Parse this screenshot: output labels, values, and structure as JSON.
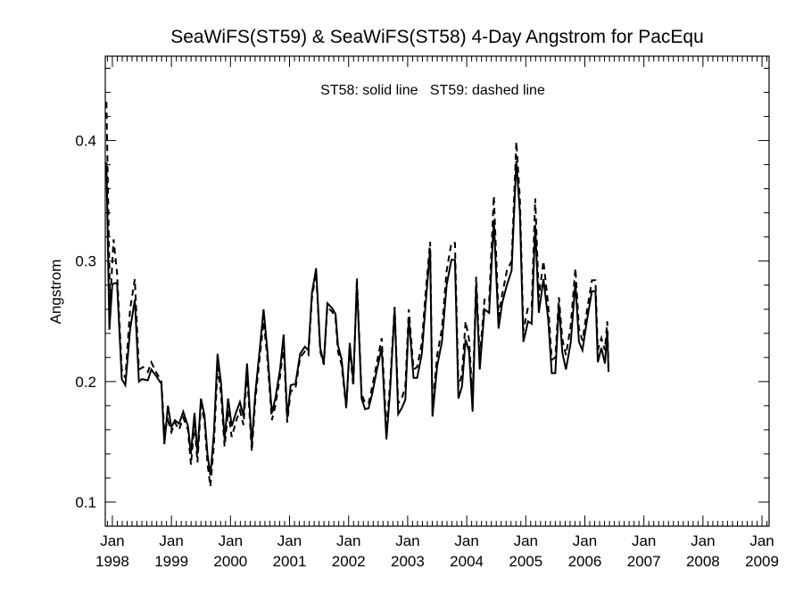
{
  "chart_data": {
    "type": "line",
    "title": "SeaWiFS(ST59) & SeaWiFS(ST58) 4-Day Angstrom for PacEqu",
    "annotation": "ST58: solid line   ST59: dashed line",
    "ylabel": "Angstrom",
    "xlim": [
      1997.88,
      2009.12
    ],
    "ylim": [
      0.08,
      0.47
    ],
    "xticks": [
      {
        "value": 1998,
        "month": "Jan",
        "year": "1998"
      },
      {
        "value": 1999,
        "month": "Jan",
        "year": "1999"
      },
      {
        "value": 2000,
        "month": "Jan",
        "year": "2000"
      },
      {
        "value": 2001,
        "month": "Jan",
        "year": "2001"
      },
      {
        "value": 2002,
        "month": "Jan",
        "year": "2002"
      },
      {
        "value": 2003,
        "month": "Jan",
        "year": "2003"
      },
      {
        "value": 2004,
        "month": "Jan",
        "year": "2004"
      },
      {
        "value": 2005,
        "month": "Jan",
        "year": "2005"
      },
      {
        "value": 2006,
        "month": "Jan",
        "year": "2006"
      },
      {
        "value": 2007,
        "month": "Jan",
        "year": "2007"
      },
      {
        "value": 2008,
        "month": "Jan",
        "year": "2008"
      },
      {
        "value": 2009,
        "month": "Jan",
        "year": "2009"
      }
    ],
    "yticks": [
      {
        "value": 0.1,
        "label": "0.1"
      },
      {
        "value": 0.2,
        "label": "0.2"
      },
      {
        "value": 0.3,
        "label": "0.3"
      },
      {
        "value": 0.4,
        "label": "0.4"
      }
    ],
    "series": [
      {
        "name": "ST58",
        "style": "solid",
        "points": [
          [
            1997.9,
            0.382
          ],
          [
            1997.95,
            0.243
          ],
          [
            1998.0,
            0.281
          ],
          [
            1998.08,
            0.282
          ],
          [
            1998.16,
            0.202
          ],
          [
            1998.22,
            0.197
          ],
          [
            1998.3,
            0.243
          ],
          [
            1998.38,
            0.268
          ],
          [
            1998.45,
            0.2
          ],
          [
            1998.5,
            0.202
          ],
          [
            1998.6,
            0.201
          ],
          [
            1998.66,
            0.21
          ],
          [
            1998.75,
            0.204
          ],
          [
            1998.83,
            0.198
          ],
          [
            1998.88,
            0.148
          ],
          [
            1998.94,
            0.18
          ],
          [
            1999.0,
            0.162
          ],
          [
            1999.06,
            0.168
          ],
          [
            1999.13,
            0.165
          ],
          [
            1999.2,
            0.175
          ],
          [
            1999.28,
            0.163
          ],
          [
            1999.33,
            0.14
          ],
          [
            1999.39,
            0.174
          ],
          [
            1999.44,
            0.14
          ],
          [
            1999.5,
            0.186
          ],
          [
            1999.56,
            0.172
          ],
          [
            1999.61,
            0.14
          ],
          [
            1999.66,
            0.122
          ],
          [
            1999.72,
            0.158
          ],
          [
            1999.78,
            0.223
          ],
          [
            1999.84,
            0.199
          ],
          [
            1999.9,
            0.152
          ],
          [
            1999.96,
            0.186
          ],
          [
            2000.02,
            0.163
          ],
          [
            2000.1,
            0.175
          ],
          [
            2000.16,
            0.183
          ],
          [
            2000.22,
            0.171
          ],
          [
            2000.28,
            0.215
          ],
          [
            2000.36,
            0.148
          ],
          [
            2000.42,
            0.19
          ],
          [
            2000.5,
            0.229
          ],
          [
            2000.56,
            0.26
          ],
          [
            2000.62,
            0.228
          ],
          [
            2000.7,
            0.174
          ],
          [
            2000.76,
            0.186
          ],
          [
            2000.84,
            0.21
          ],
          [
            2000.9,
            0.239
          ],
          [
            2000.96,
            0.17
          ],
          [
            2001.02,
            0.197
          ],
          [
            2001.1,
            0.198
          ],
          [
            2001.18,
            0.223
          ],
          [
            2001.26,
            0.229
          ],
          [
            2001.32,
            0.226
          ],
          [
            2001.38,
            0.274
          ],
          [
            2001.45,
            0.294
          ],
          [
            2001.52,
            0.228
          ],
          [
            2001.58,
            0.215
          ],
          [
            2001.64,
            0.265
          ],
          [
            2001.72,
            0.261
          ],
          [
            2001.78,
            0.256
          ],
          [
            2001.82,
            0.23
          ],
          [
            2001.88,
            0.219
          ],
          [
            2001.96,
            0.179
          ],
          [
            2002.02,
            0.232
          ],
          [
            2002.08,
            0.2
          ],
          [
            2002.14,
            0.282
          ],
          [
            2002.22,
            0.186
          ],
          [
            2002.28,
            0.177
          ],
          [
            2002.34,
            0.178
          ],
          [
            2002.4,
            0.19
          ],
          [
            2002.48,
            0.21
          ],
          [
            2002.56,
            0.228
          ],
          [
            2002.64,
            0.152
          ],
          [
            2002.7,
            0.19
          ],
          [
            2002.78,
            0.26
          ],
          [
            2002.84,
            0.173
          ],
          [
            2002.9,
            0.178
          ],
          [
            2002.96,
            0.185
          ],
          [
            2003.02,
            0.253
          ],
          [
            2003.1,
            0.203
          ],
          [
            2003.16,
            0.203
          ],
          [
            2003.24,
            0.223
          ],
          [
            2003.3,
            0.262
          ],
          [
            2003.38,
            0.31
          ],
          [
            2003.42,
            0.171
          ],
          [
            2003.5,
            0.213
          ],
          [
            2003.58,
            0.233
          ],
          [
            2003.66,
            0.28
          ],
          [
            2003.74,
            0.301
          ],
          [
            2003.8,
            0.301
          ],
          [
            2003.86,
            0.186
          ],
          [
            2003.92,
            0.196
          ],
          [
            2003.98,
            0.235
          ],
          [
            2004.04,
            0.225
          ],
          [
            2004.1,
            0.175
          ],
          [
            2004.16,
            0.281
          ],
          [
            2004.22,
            0.21
          ],
          [
            2004.3,
            0.26
          ],
          [
            2004.38,
            0.257
          ],
          [
            2004.46,
            0.334
          ],
          [
            2004.54,
            0.244
          ],
          [
            2004.6,
            0.265
          ],
          [
            2004.68,
            0.28
          ],
          [
            2004.76,
            0.292
          ],
          [
            2004.84,
            0.383
          ],
          [
            2004.9,
            0.34
          ],
          [
            2004.96,
            0.233
          ],
          [
            2005.04,
            0.25
          ],
          [
            2005.1,
            0.248
          ],
          [
            2005.16,
            0.33
          ],
          [
            2005.22,
            0.257
          ],
          [
            2005.3,
            0.285
          ],
          [
            2005.38,
            0.252
          ],
          [
            2005.44,
            0.207
          ],
          [
            2005.5,
            0.207
          ],
          [
            2005.56,
            0.264
          ],
          [
            2005.62,
            0.224
          ],
          [
            2005.68,
            0.21
          ],
          [
            2005.76,
            0.232
          ],
          [
            2005.84,
            0.282
          ],
          [
            2005.9,
            0.233
          ],
          [
            2005.96,
            0.226
          ],
          [
            2006.04,
            0.252
          ],
          [
            2006.12,
            0.275
          ],
          [
            2006.18,
            0.275
          ],
          [
            2006.22,
            0.216
          ],
          [
            2006.28,
            0.228
          ],
          [
            2006.34,
            0.215
          ],
          [
            2006.38,
            0.242
          ],
          [
            2006.4,
            0.208
          ]
        ]
      },
      {
        "name": "ST59",
        "style": "dashed",
        "points": [
          [
            1997.9,
            0.432
          ],
          [
            1997.96,
            0.263
          ],
          [
            1998.02,
            0.318
          ],
          [
            1998.08,
            0.29
          ],
          [
            1998.16,
            0.21
          ],
          [
            1998.22,
            0.203
          ],
          [
            1998.3,
            0.26
          ],
          [
            1998.38,
            0.285
          ],
          [
            1998.45,
            0.21
          ],
          [
            1998.52,
            0.212
          ],
          [
            1998.6,
            0.208
          ],
          [
            1998.66,
            0.216
          ],
          [
            1998.75,
            0.207
          ],
          [
            1998.83,
            0.2
          ],
          [
            1998.88,
            0.158
          ],
          [
            1998.94,
            0.168
          ],
          [
            1999.0,
            0.158
          ],
          [
            1999.06,
            0.166
          ],
          [
            1999.13,
            0.16
          ],
          [
            1999.2,
            0.17
          ],
          [
            1999.28,
            0.16
          ],
          [
            1999.33,
            0.131
          ],
          [
            1999.39,
            0.165
          ],
          [
            1999.44,
            0.133
          ],
          [
            1999.5,
            0.18
          ],
          [
            1999.56,
            0.168
          ],
          [
            1999.61,
            0.132
          ],
          [
            1999.66,
            0.113
          ],
          [
            1999.72,
            0.148
          ],
          [
            1999.78,
            0.212
          ],
          [
            1999.84,
            0.19
          ],
          [
            1999.9,
            0.146
          ],
          [
            1999.96,
            0.176
          ],
          [
            2000.02,
            0.154
          ],
          [
            2000.1,
            0.168
          ],
          [
            2000.16,
            0.176
          ],
          [
            2000.22,
            0.164
          ],
          [
            2000.28,
            0.207
          ],
          [
            2000.36,
            0.142
          ],
          [
            2000.42,
            0.184
          ],
          [
            2000.5,
            0.222
          ],
          [
            2000.56,
            0.25
          ],
          [
            2000.62,
            0.222
          ],
          [
            2000.7,
            0.168
          ],
          [
            2000.76,
            0.18
          ],
          [
            2000.84,
            0.204
          ],
          [
            2000.9,
            0.23
          ],
          [
            2000.96,
            0.166
          ],
          [
            2001.02,
            0.192
          ],
          [
            2001.1,
            0.194
          ],
          [
            2001.18,
            0.22
          ],
          [
            2001.26,
            0.225
          ],
          [
            2001.32,
            0.222
          ],
          [
            2001.38,
            0.27
          ],
          [
            2001.45,
            0.29
          ],
          [
            2001.52,
            0.225
          ],
          [
            2001.58,
            0.214
          ],
          [
            2001.64,
            0.262
          ],
          [
            2001.72,
            0.258
          ],
          [
            2001.78,
            0.252
          ],
          [
            2001.82,
            0.225
          ],
          [
            2001.88,
            0.214
          ],
          [
            2001.96,
            0.178
          ],
          [
            2002.02,
            0.228
          ],
          [
            2002.08,
            0.196
          ],
          [
            2002.14,
            0.286
          ],
          [
            2002.22,
            0.19
          ],
          [
            2002.28,
            0.182
          ],
          [
            2002.34,
            0.182
          ],
          [
            2002.4,
            0.196
          ],
          [
            2002.48,
            0.216
          ],
          [
            2002.56,
            0.236
          ],
          [
            2002.64,
            0.16
          ],
          [
            2002.7,
            0.196
          ],
          [
            2002.78,
            0.262
          ],
          [
            2002.84,
            0.182
          ],
          [
            2002.9,
            0.186
          ],
          [
            2002.96,
            0.196
          ],
          [
            2003.02,
            0.26
          ],
          [
            2003.1,
            0.21
          ],
          [
            2003.16,
            0.212
          ],
          [
            2003.24,
            0.232
          ],
          [
            2003.3,
            0.272
          ],
          [
            2003.38,
            0.316
          ],
          [
            2003.42,
            0.18
          ],
          [
            2003.5,
            0.222
          ],
          [
            2003.58,
            0.244
          ],
          [
            2003.66,
            0.292
          ],
          [
            2003.74,
            0.315
          ],
          [
            2003.8,
            0.315
          ],
          [
            2003.86,
            0.196
          ],
          [
            2003.92,
            0.206
          ],
          [
            2003.98,
            0.25
          ],
          [
            2004.04,
            0.235
          ],
          [
            2004.1,
            0.185
          ],
          [
            2004.16,
            0.287
          ],
          [
            2004.22,
            0.22
          ],
          [
            2004.3,
            0.268
          ],
          [
            2004.38,
            0.266
          ],
          [
            2004.46,
            0.354
          ],
          [
            2004.54,
            0.254
          ],
          [
            2004.6,
            0.272
          ],
          [
            2004.68,
            0.292
          ],
          [
            2004.76,
            0.3
          ],
          [
            2004.84,
            0.399
          ],
          [
            2004.9,
            0.352
          ],
          [
            2004.96,
            0.242
          ],
          [
            2005.04,
            0.262
          ],
          [
            2005.1,
            0.262
          ],
          [
            2005.16,
            0.352
          ],
          [
            2005.22,
            0.27
          ],
          [
            2005.3,
            0.3
          ],
          [
            2005.38,
            0.264
          ],
          [
            2005.44,
            0.218
          ],
          [
            2005.5,
            0.22
          ],
          [
            2005.56,
            0.27
          ],
          [
            2005.62,
            0.235
          ],
          [
            2005.68,
            0.222
          ],
          [
            2005.76,
            0.246
          ],
          [
            2005.84,
            0.294
          ],
          [
            2005.9,
            0.244
          ],
          [
            2005.96,
            0.234
          ],
          [
            2006.04,
            0.26
          ],
          [
            2006.12,
            0.284
          ],
          [
            2006.18,
            0.284
          ],
          [
            2006.22,
            0.226
          ],
          [
            2006.28,
            0.236
          ],
          [
            2006.34,
            0.226
          ],
          [
            2006.38,
            0.25
          ],
          [
            2006.4,
            0.212
          ]
        ]
      }
    ]
  }
}
